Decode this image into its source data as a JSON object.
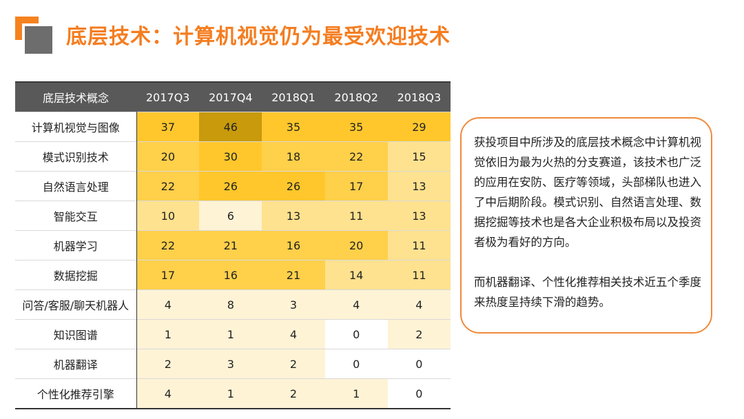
{
  "header": {
    "title": "底层技术：计算机视觉仍为最受欢迎技术"
  },
  "chart_data": {
    "type": "heatmap",
    "corner_label": "底层技术概念",
    "columns": [
      "2017Q3",
      "2017Q4",
      "2018Q1",
      "2018Q2",
      "2018Q3"
    ],
    "rows": [
      {
        "label": "计算机视觉与图像",
        "values": [
          37,
          46,
          35,
          35,
          29
        ]
      },
      {
        "label": "模式识别技术",
        "values": [
          20,
          30,
          18,
          22,
          15
        ]
      },
      {
        "label": "自然语言处理",
        "values": [
          22,
          26,
          26,
          17,
          13
        ]
      },
      {
        "label": "智能交互",
        "values": [
          10,
          6,
          13,
          11,
          13
        ]
      },
      {
        "label": "机器学习",
        "values": [
          22,
          21,
          16,
          20,
          11
        ]
      },
      {
        "label": "数据挖掘",
        "values": [
          17,
          16,
          21,
          14,
          11
        ]
      },
      {
        "label": "问答/客服/聊天机器人",
        "values": [
          4,
          8,
          3,
          4,
          4
        ]
      },
      {
        "label": "知识图谱",
        "values": [
          1,
          1,
          4,
          0,
          2
        ]
      },
      {
        "label": "机器翻译",
        "values": [
          2,
          3,
          2,
          0,
          0
        ]
      },
      {
        "label": "个性化推荐引擎",
        "values": [
          4,
          1,
          2,
          1,
          0
        ]
      }
    ],
    "value_range": [
      0,
      46
    ],
    "color_scale": [
      "#ffffff",
      "#fff3d6",
      "#ffe28f",
      "#ffd04a",
      "#ffc72c",
      "#c99a0b"
    ]
  },
  "summary": {
    "paragraph1": "获投项目中所涉及的底层技术概念中计算机视觉依旧为最为火热的分支赛道，该技术也广泛的应用在安防、医疗等领域，头部梯队也进入了中后期阶段。模式识别、自然语言处理、数据挖掘等技术也是各大企业积极布局以及投资者极为看好的方向。",
    "paragraph2": "而机器翻译、个性化推荐相关技术近五个季度来热度呈持续下滑的趋势。"
  },
  "colors": {
    "accent": "#f57d20",
    "header_bg": "#595959",
    "box_border": "#f08a3c"
  }
}
